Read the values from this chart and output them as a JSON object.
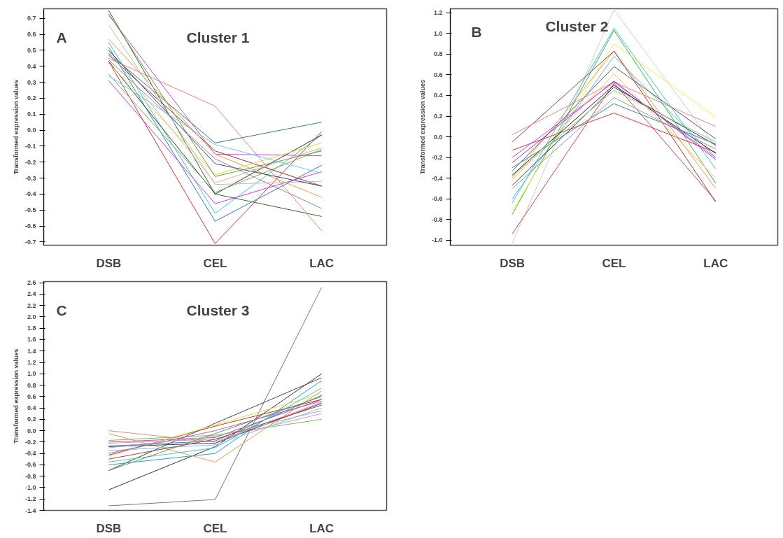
{
  "chart_data": [
    {
      "type": "line",
      "title": "Cluster 1",
      "annotations": [
        "A"
      ],
      "ylabel": "Transformed expression values",
      "categories": [
        "DSB",
        "CEL",
        "LAC"
      ],
      "ylim": [
        -0.72,
        0.76
      ],
      "yticks": [
        -0.7,
        -0.6,
        -0.5,
        -0.4,
        -0.3,
        -0.2,
        -0.1,
        {
          "value": 0,
          "label": "0.0"
        },
        0.1,
        0.2,
        0.3,
        0.4,
        0.5,
        0.6,
        0.7
      ],
      "grid": false,
      "marker": "none",
      "line_style": "solid",
      "series": [
        {
          "color": "#e88080",
          "values": [
            0.45,
            0.15,
            -0.63
          ]
        },
        {
          "color": "#cc3333",
          "values": [
            0.43,
            -0.71,
            -0.01
          ]
        },
        {
          "color": "#3377bb",
          "values": [
            0.52,
            -0.57,
            -0.22
          ]
        },
        {
          "color": "#33cccc",
          "values": [
            0.55,
            -0.52,
            -0.03
          ]
        },
        {
          "color": "#dd33dd",
          "values": [
            0.31,
            -0.46,
            -0.26
          ]
        },
        {
          "color": "#336633",
          "values": [
            0.75,
            -0.4,
            -0.54
          ]
        },
        {
          "color": "#333333",
          "values": [
            0.43,
            -0.4,
            -0.03
          ]
        },
        {
          "color": "#66bb44",
          "values": [
            0.35,
            -0.39,
            -0.12
          ]
        },
        {
          "color": "#337788",
          "values": [
            0.48,
            -0.08,
            0.05
          ]
        },
        {
          "color": "#cc44cc",
          "values": [
            0.72,
            -0.15,
            -0.16
          ]
        },
        {
          "color": "#993333",
          "values": [
            0.47,
            -0.13,
            -0.35
          ]
        },
        {
          "color": "#ee9944",
          "values": [
            0.57,
            -0.15,
            -0.42
          ]
        },
        {
          "color": "#dddd33",
          "values": [
            0.42,
            -0.28,
            -0.08
          ]
        },
        {
          "color": "#bbbbbb",
          "values": [
            0.66,
            -0.34,
            -0.32
          ]
        },
        {
          "color": "#334466",
          "values": [
            0.5,
            -0.21,
            -0.35
          ]
        },
        {
          "color": "#669933",
          "values": [
            0.73,
            -0.29,
            -0.13
          ]
        },
        {
          "color": "#ddaaaa",
          "values": [
            0.49,
            -0.33,
            -0.11
          ]
        },
        {
          "color": "#66ccee",
          "values": [
            0.34,
            -0.09,
            -0.27
          ]
        },
        {
          "color": "#998899",
          "values": [
            0.44,
            -0.18,
            -0.49
          ]
        }
      ]
    },
    {
      "type": "line",
      "title": "Cluster 2",
      "annotations": [
        "B"
      ],
      "ylabel": "Transformed expression values",
      "categories": [
        "DSB",
        "CEL",
        "LAC"
      ],
      "ylim": [
        -1.05,
        1.24
      ],
      "yticks": [
        {
          "value": -1,
          "label": "-1.0"
        },
        -0.8,
        -0.6,
        -0.4,
        -0.2,
        {
          "value": 0,
          "label": "0.0"
        },
        0.2,
        0.4,
        0.6,
        0.8,
        {
          "value": 1,
          "label": "1.0"
        },
        1.2
      ],
      "grid": false,
      "marker": "none",
      "line_style": "solid",
      "series": [
        {
          "color": "#cccccc",
          "values": [
            -1.03,
            1.23,
            -0.1
          ]
        },
        {
          "color": "#cc4444",
          "values": [
            -0.94,
            0.52,
            -0.62
          ]
        },
        {
          "color": "#33cccc",
          "values": [
            -0.64,
            1.05,
            -0.31
          ]
        },
        {
          "color": "#44aa44",
          "values": [
            -0.75,
            1.03,
            -0.45
          ]
        },
        {
          "color": "#eeee44",
          "values": [
            -0.72,
            0.9,
            0.19
          ]
        },
        {
          "color": "#ee9944",
          "values": [
            -0.4,
            0.83,
            -0.5
          ]
        },
        {
          "color": "#884444",
          "values": [
            -0.05,
            0.83,
            -0.63
          ]
        },
        {
          "color": "#55bbdd",
          "values": [
            -0.6,
            0.78,
            -0.2
          ]
        },
        {
          "color": "#555555",
          "values": [
            -0.33,
            0.68,
            -0.02
          ]
        },
        {
          "color": "#dd8888",
          "values": [
            0.02,
            0.53,
            0.1
          ]
        },
        {
          "color": "#dd3333",
          "values": [
            -0.13,
            0.23,
            -0.15
          ]
        },
        {
          "color": "#9933cc",
          "values": [
            -0.25,
            0.54,
            -0.22
          ]
        },
        {
          "color": "#222222",
          "values": [
            -0.37,
            0.5,
            -0.16
          ]
        },
        {
          "color": "#333366",
          "values": [
            -0.47,
            0.48,
            -0.08
          ]
        },
        {
          "color": "#338899",
          "values": [
            -0.3,
            0.32,
            -0.07
          ]
        },
        {
          "color": "#999999",
          "values": [
            -0.5,
            0.38,
            -0.12
          ]
        },
        {
          "color": "#dd44dd",
          "values": [
            -0.2,
            0.53,
            -0.2
          ]
        },
        {
          "color": "#88cc66",
          "values": [
            -0.38,
            0.45,
            -0.05
          ]
        },
        {
          "color": "#ffbb66",
          "values": [
            -0.42,
            0.61,
            -0.4
          ]
        }
      ]
    },
    {
      "type": "line",
      "title": "Cluster 3",
      "annotations": [
        "C"
      ],
      "ylabel": "Transformed expression values",
      "categories": [
        "DSB",
        "CEL",
        "LAC"
      ],
      "ylim": [
        -1.4,
        2.62
      ],
      "yticks": [
        -1.4,
        -1.2,
        {
          "value": -1,
          "label": "-1.0"
        },
        -0.8,
        -0.6,
        -0.4,
        -0.2,
        {
          "value": 0,
          "label": "0.0"
        },
        0.2,
        0.4,
        0.6,
        0.8,
        {
          "value": 1,
          "label": "1.0"
        },
        1.2,
        1.4,
        1.6,
        1.8,
        {
          "value": 2,
          "label": "2.0"
        },
        2.2,
        2.4,
        2.6
      ],
      "grid": false,
      "marker": "none",
      "line_style": "solid",
      "series": [
        {
          "color": "#777777",
          "values": [
            -1.32,
            -1.21,
            2.52
          ]
        },
        {
          "color": "#333333",
          "values": [
            -1.04,
            -0.28,
            1.0
          ]
        },
        {
          "color": "#444444",
          "values": [
            -0.7,
            0.13,
            0.93
          ]
        },
        {
          "color": "#3399cc",
          "values": [
            -0.6,
            -0.4,
            0.88
          ]
        },
        {
          "color": "#ee9944",
          "values": [
            -0.05,
            -0.55,
            0.7
          ]
        },
        {
          "color": "#ee8877",
          "values": [
            0.0,
            -0.2,
            0.5
          ]
        },
        {
          "color": "#66cc44",
          "values": [
            -0.17,
            -0.08,
            0.2
          ]
        },
        {
          "color": "#ee88cc",
          "values": [
            -0.22,
            -0.15,
            0.3
          ]
        },
        {
          "color": "#cc44cc",
          "values": [
            -0.2,
            -0.12,
            0.55
          ]
        },
        {
          "color": "#cc3333",
          "values": [
            -0.43,
            0.08,
            0.55
          ]
        },
        {
          "color": "#338899",
          "values": [
            -0.27,
            -0.18,
            0.62
          ]
        },
        {
          "color": "#334466",
          "values": [
            -0.28,
            -0.22,
            0.48
          ]
        },
        {
          "color": "#dddd44",
          "values": [
            -0.45,
            0.1,
            0.65
          ]
        },
        {
          "color": "#44cccc",
          "values": [
            -0.55,
            -0.3,
            0.75
          ]
        },
        {
          "color": "#669933",
          "values": [
            -0.7,
            -0.05,
            0.6
          ]
        },
        {
          "color": "#88bbee",
          "values": [
            -0.35,
            -0.25,
            0.4
          ]
        },
        {
          "color": "#994444",
          "values": [
            -0.5,
            -0.15,
            0.45
          ]
        },
        {
          "color": "#9966cc",
          "values": [
            -0.4,
            0.0,
            0.52
          ]
        },
        {
          "color": "#aaaaaa",
          "values": [
            -0.3,
            -0.1,
            0.35
          ]
        }
      ]
    }
  ]
}
